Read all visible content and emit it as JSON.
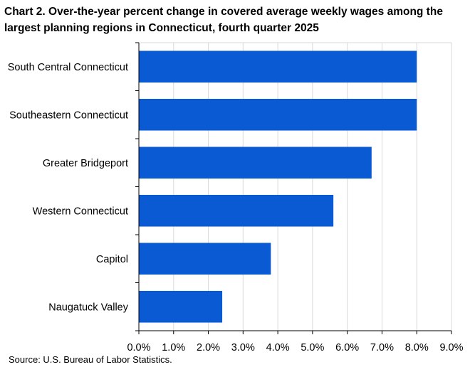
{
  "title": "Chart 2. Over-the-year percent change in covered average weekly wages among the largest planning regions in Connecticut, fourth quarter 2025",
  "source": "Source: U.S. Bureau of Labor Statistics.",
  "chart_data": {
    "type": "bar",
    "orientation": "horizontal",
    "title": "Chart 2. Over-the-year percent change in covered average weekly wages among the largest planning regions in Connecticut, fourth quarter 2025",
    "categories": [
      "South Central Connecticut",
      "Southeastern Connecticut",
      "Greater Bridgeport",
      "Western Connecticut",
      "Capitol",
      "Naugatuck Valley"
    ],
    "values": [
      8.0,
      8.0,
      6.7,
      5.6,
      3.8,
      2.4
    ],
    "xlim": [
      0,
      9.0
    ],
    "xticks": [
      "0.0%",
      "1.0%",
      "2.0%",
      "3.0%",
      "4.0%",
      "5.0%",
      "6.0%",
      "7.0%",
      "8.0%",
      "9.0%"
    ],
    "grid": true,
    "bar_color": "#0a5bd3",
    "grid_color": "#d9d9d9"
  }
}
